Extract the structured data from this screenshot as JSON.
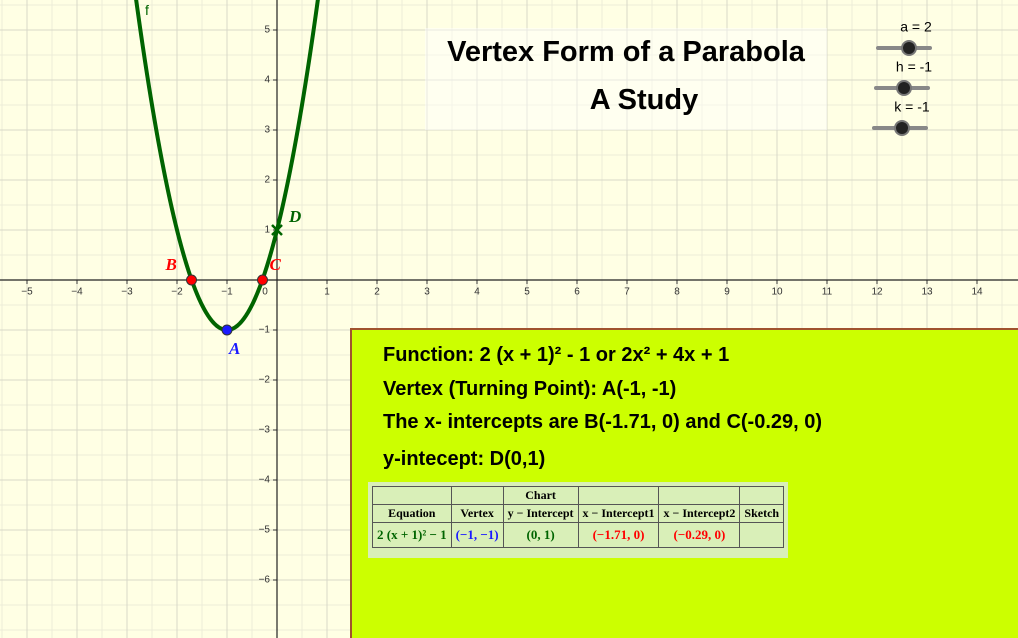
{
  "title": [
    "Vertex Form of a Parabola",
    "A Study"
  ],
  "graph": {
    "xlim": [
      -5.54,
      14.82
    ],
    "ylim": [
      -7.16,
      5.6
    ],
    "xticks": [
      {
        "value": -5,
        "label": "−5"
      },
      {
        "value": -4,
        "label": "−4"
      },
      {
        "value": -3,
        "label": "−3"
      },
      {
        "value": -2,
        "label": "−2"
      },
      {
        "value": -1,
        "label": "−1"
      },
      0,
      1,
      2,
      3,
      4,
      5,
      6,
      7,
      8,
      9,
      10,
      11,
      12,
      13,
      14
    ],
    "yticks": [
      {
        "value": -6,
        "label": "−6"
      },
      {
        "value": -5,
        "label": "−5"
      },
      {
        "value": -4,
        "label": "−4"
      },
      {
        "value": -3,
        "label": "−3"
      },
      {
        "value": -2,
        "label": "−2"
      },
      {
        "value": -1,
        "label": "−1"
      },
      1,
      2,
      3,
      4,
      5
    ],
    "curve_label": "f",
    "curve_color": "#006400",
    "points": [
      {
        "label": "A",
        "x": -1,
        "y": -1,
        "color": "#1a1aff"
      },
      {
        "label": "B",
        "x": -1.71,
        "y": 0,
        "color": "#ff0000"
      },
      {
        "label": "C",
        "x": -0.29,
        "y": 0,
        "color": "#ff0000"
      },
      {
        "label": "D",
        "x": 0,
        "y": 1,
        "color": "#006400"
      }
    ]
  },
  "sliders": [
    {
      "label": "a = 2",
      "value": 2
    },
    {
      "label": "h = -1",
      "value": -1
    },
    {
      "label": "k = -1",
      "value": -1
    }
  ],
  "info": {
    "lines": [
      "Function: 2 (x + 1)² - 1 or 2x² + 4x + 1",
      "Vertex (Turning Point): A(-1, -1)",
      "The x- intercepts are B(-1.71, 0) and C(-0.29, 0)",
      "y-intecept: D(0,1)"
    ],
    "table": {
      "caption": "Chart",
      "header": [
        "Equation",
        "Vertex",
        "y − Intercept",
        "x − Intercept1",
        "x − Intercept2",
        "Sketch"
      ],
      "row": [
        "2 (x + 1)² − 1",
        "(−1, −1)",
        "(0, 1)",
        "(−1.71, 0)",
        "(−0.29, 0)"
      ],
      "row_colors": [
        "#006400",
        "#1a1aff",
        "#006400",
        "#ff0000",
        "#ff0000"
      ]
    }
  }
}
